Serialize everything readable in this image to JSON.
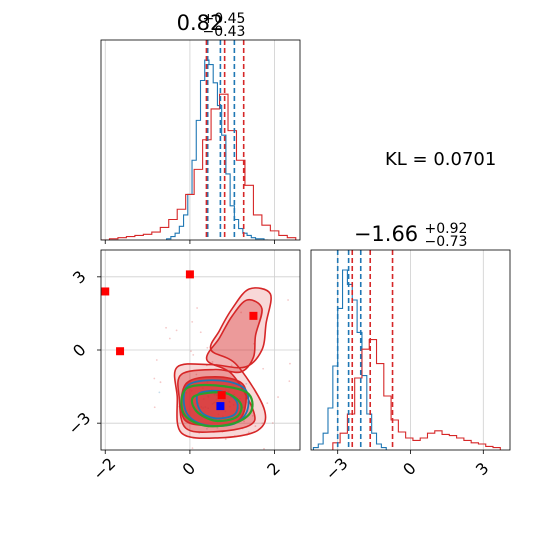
{
  "chart_data": [
    {
      "type": "histogram",
      "panel": "marginal-top",
      "title": {
        "value": "0.82",
        "sup": "+0.45",
        "sub": "−0.43"
      },
      "xlim": [
        -2.1,
        2.6
      ],
      "grid": true,
      "series": [
        {
          "color": "#1f77b4",
          "edges": [
            -0.55,
            -0.45,
            -0.35,
            -0.25,
            -0.15,
            -0.05,
            0.05,
            0.15,
            0.25,
            0.35,
            0.45,
            0.55,
            0.65,
            0.75,
            0.85,
            0.95,
            1.05,
            1.15,
            1.25,
            1.35,
            1.45,
            1.55,
            1.65,
            1.75,
            1.85
          ],
          "counts": [
            1,
            3,
            6,
            12,
            22,
            40,
            70,
            105,
            140,
            158,
            154,
            138,
            118,
            92,
            58,
            30,
            18,
            10,
            6,
            4,
            2,
            1,
            1,
            0
          ]
        },
        {
          "color": "#d62728",
          "edges": [
            -2.1,
            -1.9,
            -1.7,
            -1.5,
            -1.3,
            -1.1,
            -0.9,
            -0.7,
            -0.5,
            -0.3,
            -0.1,
            0.1,
            0.3,
            0.5,
            0.7,
            0.9,
            1.1,
            1.3,
            1.5,
            1.7,
            1.9,
            2.1,
            2.3,
            2.5
          ],
          "counts": [
            0,
            1,
            2,
            3,
            4,
            5,
            7,
            11,
            18,
            27,
            40,
            62,
            88,
            115,
            128,
            96,
            70,
            48,
            22,
            13,
            8,
            4,
            2
          ]
        }
      ],
      "quantiles": [
        {
          "color": "#1f77b4",
          "values": [
            0.42,
            0.72,
            1.05
          ]
        },
        {
          "color": "#d62728",
          "values": [
            0.39,
            0.82,
            1.27
          ]
        }
      ]
    },
    {
      "type": "contour",
      "panel": "joint",
      "xlim": [
        -2.1,
        2.6
      ],
      "ylim": [
        -4.1,
        4.1
      ],
      "xticks": [
        "−2",
        "0",
        "2"
      ],
      "yticks": [
        "3",
        "0",
        "−3"
      ],
      "grid": true,
      "red_levels": [
        {
          "points": [
            [
              -0.3,
              -0.7
            ],
            [
              0.5,
              -0.6
            ],
            [
              1.3,
              -0.7
            ],
            [
              1.7,
              0.0
            ],
            [
              1.8,
              1.1
            ],
            [
              1.9,
              2.3
            ],
            [
              1.4,
              2.5
            ],
            [
              1.0,
              1.7
            ],
            [
              0.7,
              0.8
            ],
            [
              0.5,
              0.0
            ],
            [
              1.1,
              -0.6
            ],
            [
              1.75,
              -2.4
            ],
            [
              1.6,
              -3.3
            ],
            [
              0.7,
              -3.6
            ],
            [
              -0.2,
              -3.4
            ],
            [
              -0.3,
              -1.9
            ]
          ]
        },
        {
          "points": [
            [
              -0.2,
              -1.0
            ],
            [
              0.6,
              -0.8
            ],
            [
              1.2,
              -0.9
            ],
            [
              1.5,
              -0.3
            ],
            [
              1.55,
              0.6
            ],
            [
              1.7,
              1.7
            ],
            [
              1.35,
              2.05
            ],
            [
              1.0,
              1.4
            ],
            [
              0.7,
              0.5
            ],
            [
              0.4,
              -0.4
            ],
            [
              1.0,
              -1.0
            ],
            [
              1.5,
              -2.5
            ],
            [
              1.4,
              -3.1
            ],
            [
              0.6,
              -3.35
            ],
            [
              -0.1,
              -3.2
            ],
            [
              -0.25,
              -2.0
            ]
          ]
        },
        {
          "points": [
            [
              -0.1,
              -1.4
            ],
            [
              0.6,
              -1.1
            ],
            [
              1.25,
              -1.4
            ],
            [
              1.3,
              -2.4
            ],
            [
              1.05,
              -3.0
            ],
            [
              0.4,
              -3.1
            ],
            [
              -0.15,
              -2.8
            ]
          ]
        }
      ],
      "blue_contours": [
        {
          "points": [
            [
              -0.05,
              -1.45
            ],
            [
              0.7,
              -1.25
            ],
            [
              1.3,
              -1.6
            ],
            [
              1.35,
              -2.5
            ],
            [
              1.0,
              -3.05
            ],
            [
              0.3,
              -3.05
            ],
            [
              -0.1,
              -2.5
            ]
          ]
        },
        {
          "points": [
            [
              0.2,
              -1.8
            ],
            [
              0.75,
              -1.7
            ],
            [
              1.1,
              -2.1
            ],
            [
              1.05,
              -2.65
            ],
            [
              0.6,
              -2.8
            ],
            [
              0.25,
              -2.5
            ]
          ]
        }
      ],
      "green_contours": [
        {
          "points": [
            [
              -0.1,
              -1.6
            ],
            [
              0.6,
              -1.45
            ],
            [
              1.35,
              -1.75
            ],
            [
              1.45,
              -2.5
            ],
            [
              1.05,
              -3.0
            ],
            [
              0.35,
              -3.1
            ],
            [
              -0.15,
              -2.6
            ]
          ]
        },
        {
          "points": [
            [
              0.1,
              -1.9
            ],
            [
              0.8,
              -1.75
            ],
            [
              1.2,
              -2.2
            ],
            [
              1.1,
              -2.75
            ],
            [
              0.6,
              -2.9
            ],
            [
              0.15,
              -2.5
            ]
          ]
        }
      ],
      "red_markers": [
        [
          -2.0,
          2.4
        ],
        [
          -1.65,
          -0.05
        ],
        [
          0.0,
          3.1
        ],
        [
          1.5,
          1.4
        ],
        [
          0.75,
          -1.85
        ]
      ],
      "blue_markers": [
        [
          0.72,
          -2.3
        ]
      ]
    },
    {
      "type": "histogram",
      "panel": "marginal-right",
      "title": {
        "value": "−1.66",
        "sup": "+0.92",
        "sub": "−0.73"
      },
      "xlim": [
        -4.1,
        4.1
      ],
      "xticks": [
        "−3",
        "0",
        "3"
      ],
      "grid": true,
      "series": [
        {
          "color": "#1f77b4",
          "edges": [
            -4.0,
            -3.8,
            -3.6,
            -3.4,
            -3.2,
            -3.0,
            -2.8,
            -2.6,
            -2.4,
            -2.2,
            -2.0,
            -1.8,
            -1.6,
            -1.4,
            -1.2,
            -1.0
          ],
          "counts": [
            2,
            5,
            14,
            35,
            70,
            118,
            150,
            138,
            125,
            98,
            62,
            30,
            14,
            5,
            2
          ]
        },
        {
          "color": "#d62728",
          "edges": [
            -3.2,
            -2.9,
            -2.6,
            -2.3,
            -2.0,
            -1.7,
            -1.4,
            -1.1,
            -0.8,
            -0.5,
            -0.2,
            0.1,
            0.4,
            0.7,
            1.0,
            1.3,
            1.6,
            1.9,
            2.2,
            2.5,
            2.8,
            3.1,
            3.4,
            3.7
          ],
          "counts": [
            6,
            14,
            30,
            60,
            84,
            92,
            72,
            45,
            25,
            15,
            10,
            8,
            10,
            14,
            16,
            13,
            12,
            10,
            8,
            6,
            5,
            3,
            2
          ]
        }
      ],
      "quantiles": [
        {
          "color": "#1f77b4",
          "values": [
            -3.0,
            -2.55,
            -2.05
          ]
        },
        {
          "color": "#d62728",
          "values": [
            -2.4,
            -1.66,
            -0.74
          ]
        }
      ]
    }
  ],
  "annotation": {
    "label": "KL = 0.0701"
  }
}
